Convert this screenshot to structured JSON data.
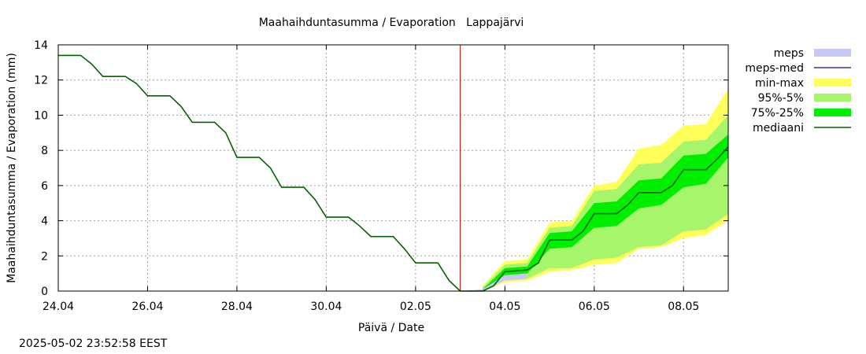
{
  "chart_data": {
    "type": "area",
    "title": "Maahaihduntasumma / Evaporation   Lappajärvi",
    "xlabel": "Päivä / Date",
    "ylabel": "Maahaihduntasumma / Evaporation (mm)",
    "ylim": [
      0,
      14
    ],
    "yticks": [
      "0",
      "2",
      "4",
      "6",
      "8",
      "10",
      "12",
      "14"
    ],
    "xlim": [
      "2025-04-24",
      "2025-05-09"
    ],
    "xticks": [
      {
        "label": "24.04",
        "date": "2025-04-24"
      },
      {
        "label": "26.04",
        "date": "2025-04-26"
      },
      {
        "label": "28.04",
        "date": "2025-04-28"
      },
      {
        "label": "30.04",
        "date": "2025-04-30"
      },
      {
        "label": "02.05",
        "date": "2025-05-02"
      },
      {
        "label": "04.05",
        "date": "2025-05-04"
      },
      {
        "label": "06.05",
        "date": "2025-05-06"
      },
      {
        "label": "08.05",
        "date": "2025-05-08"
      }
    ],
    "grid": true,
    "legend_position": "right",
    "legend": [
      {
        "label": "meps",
        "kind": "band",
        "color": "#c8c8f5"
      },
      {
        "label": "meps-med",
        "kind": "line",
        "color": "#3535a0"
      },
      {
        "label": "min-max",
        "kind": "band",
        "color": "#ffff5a"
      },
      {
        "label": "95%-5%",
        "kind": "band",
        "color": "#a6f56a"
      },
      {
        "label": "75%-25%",
        "kind": "band",
        "color": "#00ee00"
      },
      {
        "label": "mediaani",
        "kind": "line",
        "color": "#006400"
      }
    ],
    "forecast_marker": {
      "date": "2025-05-03",
      "color": "#cc0000"
    },
    "series": [
      {
        "name": "mediaani",
        "color": "#006400",
        "x": [
          "2025-04-24",
          "2025-04-24T12:00",
          "2025-04-24T18:00",
          "2025-04-25",
          "2025-04-25T12:00",
          "2025-04-25T18:00",
          "2025-04-26",
          "2025-04-26T12:00",
          "2025-04-26T18:00",
          "2025-04-27",
          "2025-04-27T12:00",
          "2025-04-27T18:00",
          "2025-04-28",
          "2025-04-28T12:00",
          "2025-04-28T18:00",
          "2025-04-29",
          "2025-04-29T12:00",
          "2025-04-29T18:00",
          "2025-04-30",
          "2025-04-30T12:00",
          "2025-04-30T18:00",
          "2025-05-01",
          "2025-05-01T12:00",
          "2025-05-01T18:00",
          "2025-05-02",
          "2025-05-02T12:00",
          "2025-05-02T18:00",
          "2025-05-03",
          "2025-05-03T12:00",
          "2025-05-03T18:00",
          "2025-05-04",
          "2025-05-04T12:00",
          "2025-05-04T18:00",
          "2025-05-05",
          "2025-05-05T12:00",
          "2025-05-05T18:00",
          "2025-05-06",
          "2025-05-06T12:00",
          "2025-05-06T18:00",
          "2025-05-07",
          "2025-05-07T12:00",
          "2025-05-07T18:00",
          "2025-05-08",
          "2025-05-08T12:00",
          "2025-05-08T18:00",
          "2025-05-09"
        ],
        "values": [
          13.4,
          13.4,
          12.9,
          12.2,
          12.2,
          11.8,
          11.1,
          11.1,
          10.5,
          9.6,
          9.6,
          9.0,
          7.6,
          7.6,
          7.0,
          5.9,
          5.9,
          5.2,
          4.2,
          4.2,
          3.7,
          3.1,
          3.1,
          2.4,
          1.6,
          1.6,
          0.6,
          0.0,
          0.0,
          0.3,
          1.1,
          1.2,
          1.6,
          2.9,
          2.9,
          3.4,
          4.4,
          4.4,
          4.9,
          5.6,
          5.6,
          6.0,
          6.9,
          6.9,
          7.5,
          8.2
        ]
      },
      {
        "name": "75%-25%",
        "color": "#00ee00",
        "x": [
          "2025-05-03T12:00",
          "2025-05-04",
          "2025-05-04T12:00",
          "2025-05-05",
          "2025-05-05T12:00",
          "2025-05-06",
          "2025-05-06T12:00",
          "2025-05-07",
          "2025-05-07T12:00",
          "2025-05-08",
          "2025-05-08T12:00",
          "2025-05-09"
        ],
        "high": [
          0.1,
          1.3,
          1.4,
          3.3,
          3.4,
          5.0,
          5.1,
          6.3,
          6.4,
          7.7,
          7.8,
          8.9
        ],
        "low": [
          0.0,
          0.9,
          1.0,
          2.4,
          2.5,
          3.6,
          3.7,
          4.7,
          4.9,
          5.9,
          6.1,
          7.6
        ]
      },
      {
        "name": "95%-5%",
        "color": "#a6f56a",
        "x": [
          "2025-05-03T12:00",
          "2025-05-04",
          "2025-05-04T12:00",
          "2025-05-05",
          "2025-05-05T12:00",
          "2025-05-06",
          "2025-05-06T12:00",
          "2025-05-07",
          "2025-05-07T12:00",
          "2025-05-08",
          "2025-05-08T12:00",
          "2025-05-09"
        ],
        "high": [
          0.2,
          1.5,
          1.6,
          3.6,
          3.7,
          5.7,
          5.8,
          7.2,
          7.3,
          8.5,
          8.6,
          10.0
        ],
        "low": [
          0.0,
          0.6,
          0.7,
          1.3,
          1.3,
          1.8,
          1.9,
          2.5,
          2.6,
          3.4,
          3.5,
          4.4
        ]
      },
      {
        "name": "min-max",
        "color": "#ffff5a",
        "x": [
          "2025-05-03T12:00",
          "2025-05-04",
          "2025-05-04T12:00",
          "2025-05-05",
          "2025-05-05T12:00",
          "2025-05-06",
          "2025-05-06T12:00",
          "2025-05-07",
          "2025-05-07T12:00",
          "2025-05-08",
          "2025-05-08T12:00",
          "2025-05-09"
        ],
        "high": [
          0.3,
          1.7,
          1.8,
          3.9,
          4.0,
          6.0,
          6.2,
          8.1,
          8.3,
          9.4,
          9.5,
          11.5
        ],
        "low": [
          0.0,
          0.5,
          0.6,
          1.1,
          1.2,
          1.5,
          1.6,
          2.4,
          2.5,
          3.0,
          3.2,
          4.0
        ]
      },
      {
        "name": "meps",
        "color": "#c8c8f5",
        "x": [
          "2025-05-03",
          "2025-05-03T12:00",
          "2025-05-04",
          "2025-05-04T12:00"
        ],
        "high": [
          0.0,
          0.1,
          0.9,
          1.0
        ],
        "low": [
          0.0,
          0.0,
          0.6,
          0.7
        ]
      }
    ]
  },
  "footer": {
    "timestamp": "2025-05-02 23:52:58 EEST"
  }
}
